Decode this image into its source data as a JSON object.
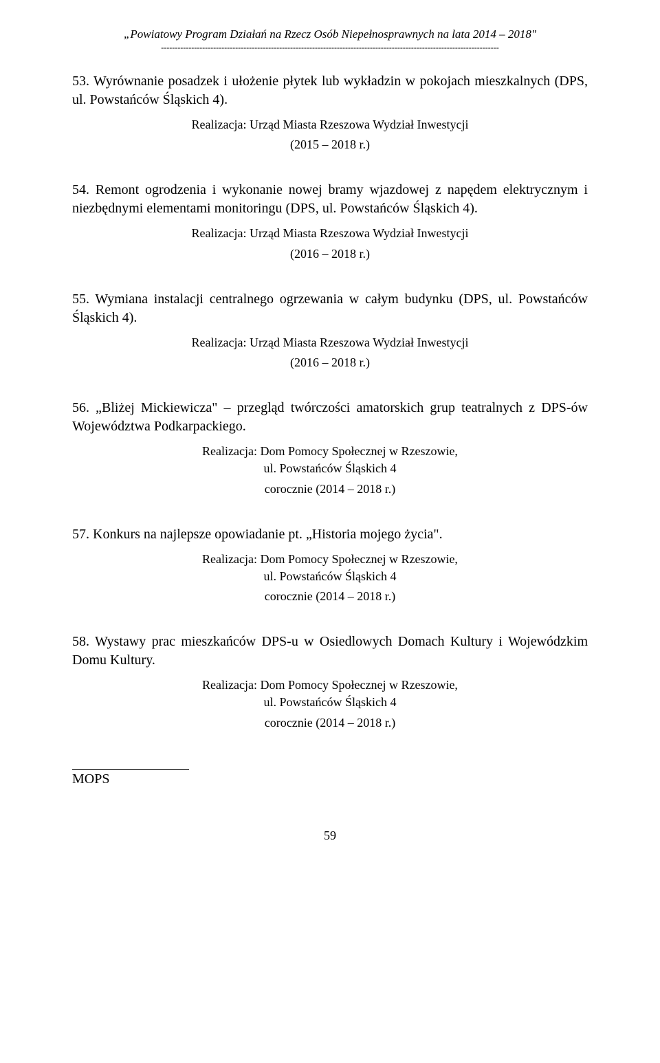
{
  "header": {
    "title": "„Powiatowy Program Działań na Rzecz Osób Niepełnosprawnych na lata 2014 – 2018\"",
    "separator": "---------------------------------------------------------------------------------------------------------------------------"
  },
  "items": [
    {
      "text": "53. Wyrównanie posadzek i ułożenie płytek lub wykładzin w pokojach mieszkalnych (DPS, ul. Powstańców Śląskich 4).",
      "realizacja": "Realizacja: Urząd Miasta Rzeszowa Wydział Inwestycji",
      "addr": "",
      "date": "(2015 – 2018 r.)"
    },
    {
      "text": "54. Remont ogrodzenia i wykonanie nowej bramy wjazdowej z napędem elektrycznym i niezbędnymi elementami monitoringu (DPS, ul. Powstańców Śląskich 4).",
      "realizacja": "Realizacja: Urząd Miasta Rzeszowa Wydział Inwestycji",
      "addr": "",
      "date": "(2016 – 2018 r.)"
    },
    {
      "text": "55. Wymiana instalacji centralnego ogrzewania w całym budynku (DPS, ul. Powstańców Śląskich 4).",
      "realizacja": "Realizacja: Urząd Miasta Rzeszowa Wydział Inwestycji",
      "addr": "",
      "date": "(2016 – 2018 r.)"
    },
    {
      "text": "56. „Bliżej Mickiewicza\" – przegląd  twórczości amatorskich grup teatralnych z DPS-ów Województwa Podkarpackiego.",
      "realizacja": "Realizacja: Dom Pomocy Społecznej w Rzeszowie,",
      "addr": "ul. Powstańców Śląskich 4",
      "date": "corocznie (2014 – 2018 r.)"
    },
    {
      "text": "57. Konkurs na najlepsze opowiadanie pt. „Historia mojego życia\".",
      "realizacja": "Realizacja: Dom Pomocy Społecznej w Rzeszowie,",
      "addr": "ul. Powstańców Śląskich 4",
      "date": "corocznie (2014 – 2018 r.)"
    },
    {
      "text": "58. Wystawy prac mieszkańców DPS-u w Osiedlowych Domach Kultury i Wojewódzkim Domu Kultury.",
      "realizacja": "Realizacja: Dom Pomocy Społecznej w Rzeszowie,",
      "addr": "ul. Powstańców Śląskich 4",
      "date": "corocznie (2014 – 2018 r.)"
    }
  ],
  "footer": {
    "text": "MOPS"
  },
  "page_number": "59",
  "colors": {
    "text": "#000000",
    "background": "#ffffff"
  },
  "typography": {
    "header_fontsize": 17,
    "body_fontsize": 20,
    "realizacja_fontsize": 18,
    "font_family": "Times New Roman"
  }
}
